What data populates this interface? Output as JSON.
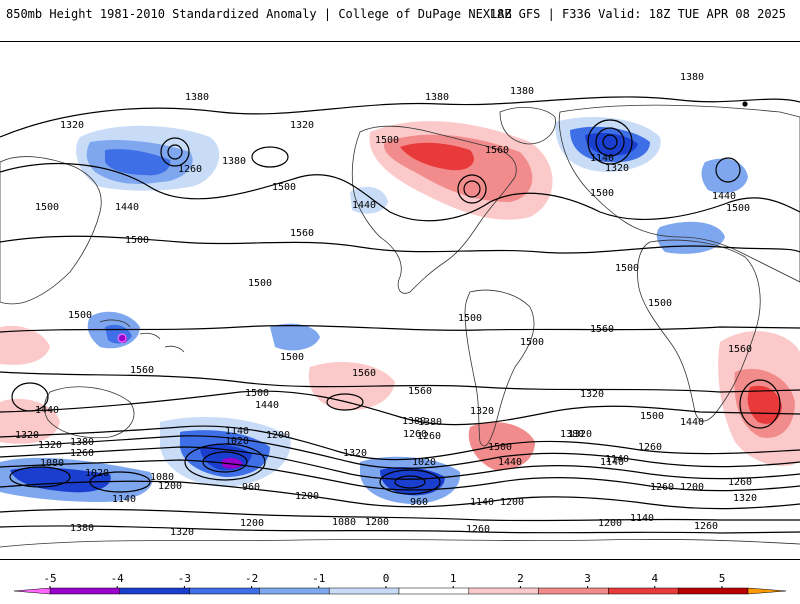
{
  "header": {
    "title": "850mb Height 1981-2010 Standardized Anomaly | College of DuPage NEXLAB",
    "run_info": "18Z GFS | F336 Valid: 18Z TUE APR 08 2025"
  },
  "colorbar": {
    "ticks": [
      "-5",
      "-4",
      "-3",
      "-2",
      "-1",
      "0",
      "1",
      "2",
      "3",
      "4",
      "5"
    ],
    "colors": [
      "#ff66ff",
      "#9900cc",
      "#1a3fcf",
      "#3f6fe6",
      "#7ea7f0",
      "#c8dcf8",
      "#ffffff",
      "#fbc9c9",
      "#f28c8c",
      "#e83a3a",
      "#b80000",
      "#ff9900"
    ]
  },
  "map": {
    "contour_labels": [
      "1380",
      "1380",
      "1380",
      "1320",
      "1320",
      "1260",
      "1380",
      "1500",
      "1440",
      "1560",
      "1500",
      "1440",
      "1500",
      "1560",
      "1500",
      "1320",
      "1140",
      "1440",
      "1500",
      "1500",
      "1500",
      "1500",
      "1560",
      "1500",
      "1500",
      "1500",
      "1500",
      "1560",
      "1500",
      "1440",
      "1560",
      "1560",
      "1500",
      "1440",
      "1380",
      "1320",
      "1260",
      "1380",
      "1320",
      "1260",
      "1080",
      "1020",
      "1140",
      "1080",
      "1200",
      "1140",
      "1020",
      "1200",
      "960",
      "1320",
      "1380",
      "1260",
      "1200",
      "1020",
      "960",
      "1140",
      "1200",
      "1080",
      "1200",
      "1260",
      "1320",
      "1380",
      "1560",
      "1500",
      "1440",
      "1320",
      "1260",
      "1140",
      "1260",
      "1200",
      "1320",
      "1260",
      "1200",
      "1140",
      "1260",
      "1380",
      "1320",
      "1140",
      "1200",
      "1500",
      "1440",
      "1380",
      "1320"
    ]
  }
}
